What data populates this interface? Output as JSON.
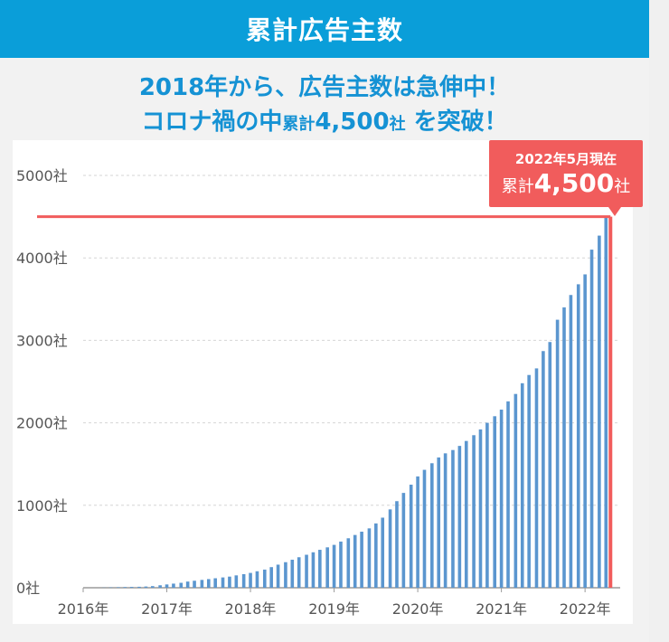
{
  "header": {
    "title": "累計広告主数"
  },
  "headline": {
    "line1": "2018年から、広告主数は急伸中！",
    "line2_a": "コロナ禍の中",
    "line2_b": "累計",
    "line2_c": "4,500",
    "line2_d": "社",
    "line2_e": " を突破！"
  },
  "callout": {
    "date": "2022年5月現在",
    "prefix": "累計",
    "value": "4,500",
    "suffix": "社"
  },
  "colors": {
    "header": "#0a9ed9",
    "headline": "#1592d4",
    "bar": "#5b96cf",
    "accent": "#f15c5c"
  },
  "chart_data": {
    "type": "bar",
    "y_ticks": [
      "0社",
      "1000社",
      "2000社",
      "3000社",
      "4000社",
      "5000社"
    ],
    "x_ticks": [
      "2016年",
      "2017年",
      "2018年",
      "2019年",
      "2020年",
      "2021年",
      "2022年"
    ],
    "xlim": [
      2016,
      2022.42
    ],
    "ylim": [
      0,
      5000
    ],
    "grid": true,
    "reference_line": {
      "value": 4500,
      "label": "累計4,500社"
    },
    "x": [
      2016.0,
      2016.08,
      2016.17,
      2016.25,
      2016.33,
      2016.42,
      2016.5,
      2016.58,
      2016.67,
      2016.75,
      2016.83,
      2016.92,
      2017.0,
      2017.08,
      2017.17,
      2017.25,
      2017.33,
      2017.42,
      2017.5,
      2017.58,
      2017.67,
      2017.75,
      2017.83,
      2017.92,
      2018.0,
      2018.08,
      2018.17,
      2018.25,
      2018.33,
      2018.42,
      2018.5,
      2018.58,
      2018.67,
      2018.75,
      2018.83,
      2018.92,
      2019.0,
      2019.08,
      2019.17,
      2019.25,
      2019.33,
      2019.42,
      2019.5,
      2019.58,
      2019.67,
      2019.75,
      2019.83,
      2019.92,
      2020.0,
      2020.08,
      2020.17,
      2020.25,
      2020.33,
      2020.42,
      2020.5,
      2020.58,
      2020.67,
      2020.75,
      2020.83,
      2020.92,
      2021.0,
      2021.08,
      2021.17,
      2021.25,
      2021.33,
      2021.42,
      2021.5,
      2021.58,
      2021.67,
      2021.75,
      2021.83,
      2021.92,
      2022.0,
      2022.08,
      2022.17,
      2022.25
    ],
    "values": [
      0,
      0,
      0,
      2,
      4,
      6,
      8,
      10,
      12,
      15,
      20,
      30,
      40,
      50,
      60,
      75,
      85,
      95,
      105,
      115,
      125,
      135,
      150,
      165,
      180,
      200,
      220,
      250,
      280,
      310,
      340,
      370,
      400,
      430,
      460,
      490,
      520,
      560,
      600,
      640,
      680,
      720,
      780,
      850,
      950,
      1050,
      1150,
      1250,
      1350,
      1430,
      1510,
      1580,
      1630,
      1670,
      1720,
      1780,
      1850,
      1920,
      2000,
      2080,
      2160,
      2260,
      2350,
      2480,
      2580,
      2660,
      2870,
      2980,
      3250,
      3400,
      3550,
      3680,
      3800,
      4100,
      4270,
      4500
    ]
  }
}
